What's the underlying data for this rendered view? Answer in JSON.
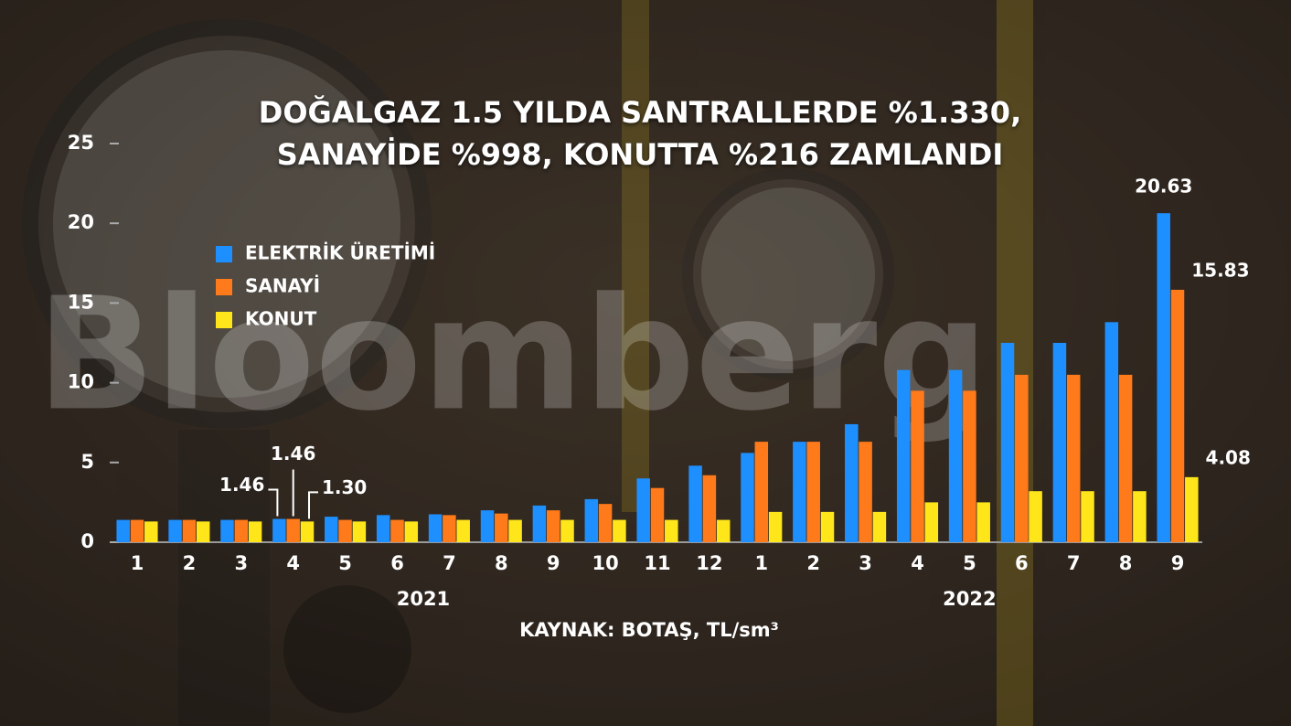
{
  "chart_data": {
    "type": "bar",
    "title": "DOĞALGAZ 1.5 YILDA SANTRALLERDE %1.330, SANAYİDE %998, KONUTTA %216 ZAMLANDI",
    "source": "KAYNAK: BOTAŞ, TL/sm³",
    "watermark": "Bloomberg",
    "categories": [
      "1",
      "2",
      "3",
      "4",
      "5",
      "6",
      "7",
      "8",
      "9",
      "10",
      "11",
      "12",
      "1",
      "2",
      "3",
      "4",
      "5",
      "6",
      "7",
      "8",
      "9"
    ],
    "years": [
      "2021",
      "2022"
    ],
    "series": [
      {
        "name": "ELEKTRİK ÜRETİMİ",
        "color": "#1e8fff",
        "values": [
          1.4,
          1.4,
          1.4,
          1.46,
          1.6,
          1.7,
          1.75,
          2.0,
          2.3,
          2.7,
          4.0,
          4.8,
          5.6,
          6.3,
          7.4,
          10.8,
          10.8,
          12.5,
          12.5,
          13.8,
          20.63
        ],
        "value_labels": [
          null,
          null,
          null,
          "1.46",
          null,
          null,
          null,
          null,
          null,
          null,
          null,
          null,
          null,
          null,
          null,
          null,
          null,
          null,
          null,
          null,
          "20.63"
        ]
      },
      {
        "name": "SANAYİ",
        "color": "#ff7a1a",
        "values": [
          1.4,
          1.4,
          1.4,
          1.46,
          1.4,
          1.4,
          1.7,
          1.8,
          2.0,
          2.4,
          3.4,
          4.2,
          6.3,
          6.3,
          6.3,
          9.5,
          9.5,
          10.5,
          10.5,
          10.5,
          15.83
        ],
        "value_labels": [
          null,
          null,
          null,
          "1.46",
          null,
          null,
          null,
          null,
          null,
          null,
          null,
          null,
          null,
          null,
          null,
          null,
          null,
          null,
          null,
          null,
          "15.83"
        ]
      },
      {
        "name": "KONUT",
        "color": "#ffe61a",
        "values": [
          1.3,
          1.3,
          1.3,
          1.3,
          1.3,
          1.3,
          1.4,
          1.4,
          1.4,
          1.4,
          1.4,
          1.4,
          1.9,
          1.9,
          1.9,
          2.5,
          2.5,
          3.2,
          3.2,
          3.2,
          4.08
        ],
        "value_labels": [
          null,
          null,
          null,
          "1.30",
          null,
          null,
          null,
          null,
          null,
          null,
          null,
          null,
          null,
          null,
          null,
          null,
          null,
          null,
          null,
          null,
          "4.08"
        ]
      }
    ],
    "ylim": [
      0,
      25
    ],
    "yticks": [
      0,
      5,
      10,
      15,
      20,
      25
    ],
    "legend": "upper-left"
  }
}
